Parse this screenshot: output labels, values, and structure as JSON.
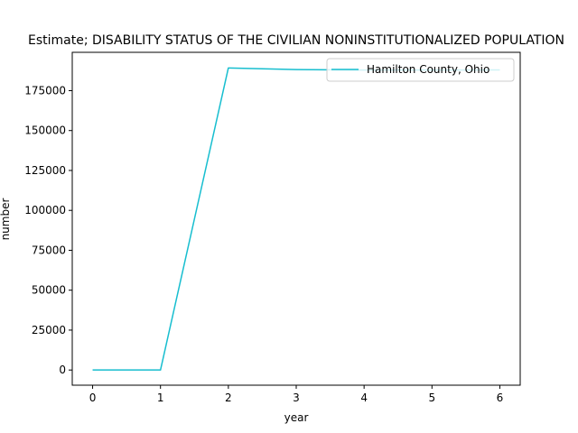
{
  "chart_data": {
    "type": "line",
    "title": "Estimate; DISABILITY STATUS OF THE CIVILIAN NONINSTITUTIONALIZED POPULATION",
    "xlabel": "year",
    "ylabel": "number",
    "x": [
      0,
      1,
      2,
      3,
      4,
      5,
      6
    ],
    "xticks": [
      "0",
      "1",
      "2",
      "3",
      "4",
      "5",
      "6"
    ],
    "yticks": [
      0,
      25000,
      50000,
      75000,
      100000,
      125000,
      150000,
      175000
    ],
    "ytick_labels": [
      "0",
      "25000",
      "50000",
      "75000",
      "100000",
      "125000",
      "150000",
      "175000"
    ],
    "xlim": [
      -0.3,
      6.3
    ],
    "ylim": [
      -9500,
      199000
    ],
    "legend_position": "upper right",
    "series": [
      {
        "name": "Hamilton County, Ohio",
        "color": "#17becf",
        "values": [
          0,
          0,
          189200,
          188200,
          187900,
          187900,
          188000
        ]
      }
    ]
  }
}
